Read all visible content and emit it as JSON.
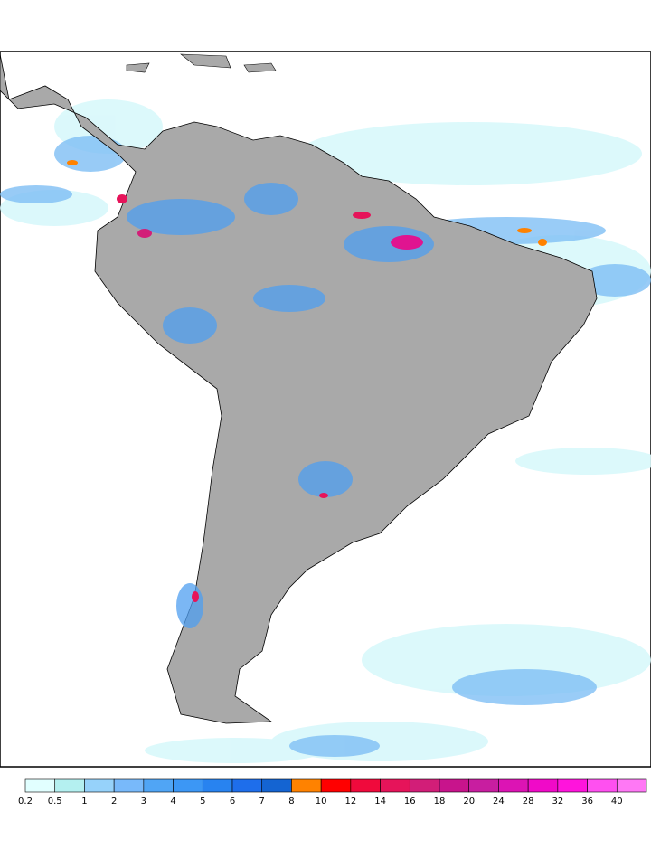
{
  "legend": {
    "labels": [
      0.2,
      0.5,
      1,
      2,
      3,
      4,
      5,
      6,
      7,
      8,
      10,
      12,
      14,
      16,
      18,
      20,
      24,
      28,
      32,
      36,
      40
    ],
    "colors": [
      "#e1ffff",
      "#b4f0f0",
      "#96d2fa",
      "#78b9fa",
      "#50a5f5",
      "#3c97f5",
      "#2883f0",
      "#1e6eeb",
      "#1464d2",
      "#ff8200",
      "#ff0000",
      "#f00a3c",
      "#e6145a",
      "#d21e78",
      "#c8148c",
      "#c81ea0",
      "#dc14b4",
      "#f00ac8",
      "#ff14dc",
      "#ff50f0",
      "#ff78f5"
    ]
  }
}
